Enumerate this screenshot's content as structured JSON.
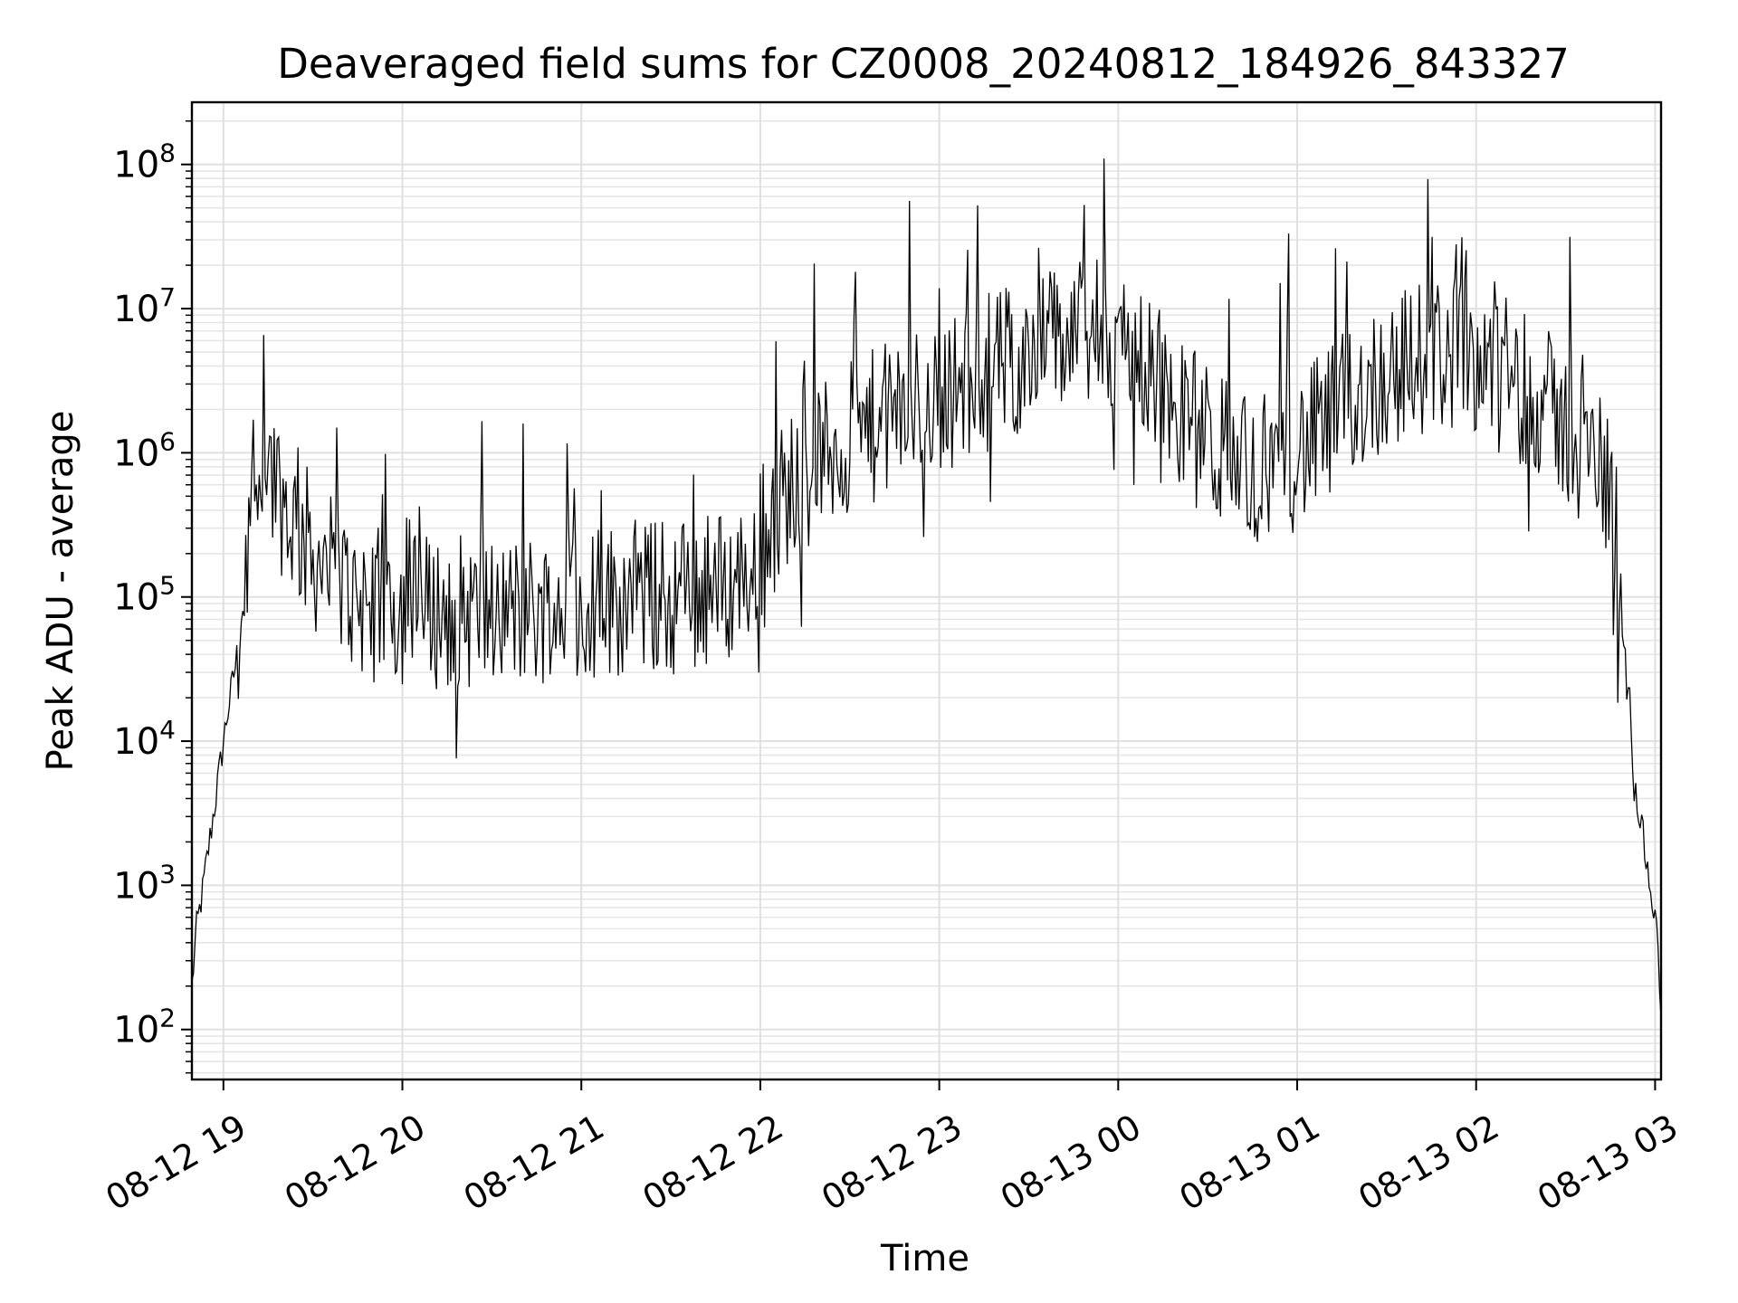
{
  "chart_data": {
    "type": "line",
    "title": "Deaveraged field sums for CZ0008_20240812_184926_843327",
    "xlabel": "Time",
    "ylabel": "Peak ADU - average",
    "yscale": "log",
    "xlim": [
      "2024-08-12 18:49:26",
      "2024-08-13 03:02:00"
    ],
    "ylim": [
      45,
      270000000
    ],
    "grid": true,
    "x_ticks": [
      {
        "value": "2024-08-12 19:00",
        "label": "08-12 19"
      },
      {
        "value": "2024-08-12 20:00",
        "label": "08-12 20"
      },
      {
        "value": "2024-08-12 21:00",
        "label": "08-12 21"
      },
      {
        "value": "2024-08-12 22:00",
        "label": "08-12 22"
      },
      {
        "value": "2024-08-12 23:00",
        "label": "08-12 23"
      },
      {
        "value": "2024-08-13 00:00",
        "label": "08-13 00"
      },
      {
        "value": "2024-08-13 01:00",
        "label": "08-13 01"
      },
      {
        "value": "2024-08-13 02:00",
        "label": "08-13 02"
      },
      {
        "value": "2024-08-13 03:00",
        "label": "08-13 03"
      }
    ],
    "y_ticks": [
      {
        "value": 100,
        "base": "10",
        "exp": "2"
      },
      {
        "value": 1000,
        "base": "10",
        "exp": "3"
      },
      {
        "value": 10000,
        "base": "10",
        "exp": "4"
      },
      {
        "value": 100000,
        "base": "10",
        "exp": "5"
      },
      {
        "value": 1000000,
        "base": "10",
        "exp": "6"
      },
      {
        "value": 10000000,
        "base": "10",
        "exp": "7"
      },
      {
        "value": 100000000,
        "base": "10",
        "exp": "8"
      }
    ],
    "series": [
      {
        "color": "#000000",
        "x": [
          "2024-08-12 18:49:26",
          "2024-08-12 18:51:00",
          "2024-08-12 18:53:00",
          "2024-08-12 18:55:00",
          "2024-08-12 18:57:00",
          "2024-08-12 18:59:00",
          "2024-08-12 19:01:00",
          "2024-08-12 19:03:00",
          "2024-08-12 19:05:00",
          "2024-08-12 19:07:00",
          "2024-08-12 19:09:00",
          "2024-08-12 19:12:00",
          "2024-08-12 19:15:00",
          "2024-08-12 19:18:00",
          "2024-08-12 19:21:00",
          "2024-08-12 19:25:00",
          "2024-08-12 19:30:00",
          "2024-08-12 19:35:00",
          "2024-08-12 19:40:00",
          "2024-08-12 19:45:00",
          "2024-08-12 19:50:00",
          "2024-08-12 20:00:00",
          "2024-08-12 20:10:00",
          "2024-08-12 20:20:00",
          "2024-08-12 20:30:00",
          "2024-08-12 20:40:00",
          "2024-08-12 20:50:00",
          "2024-08-12 21:00:00",
          "2024-08-12 21:10:00",
          "2024-08-12 21:20:00",
          "2024-08-12 21:30:00",
          "2024-08-12 21:40:00",
          "2024-08-12 21:50:00",
          "2024-08-12 21:55:00",
          "2024-08-12 22:00:00",
          "2024-08-12 22:10:00",
          "2024-08-12 22:20:00",
          "2024-08-12 22:30:00",
          "2024-08-12 22:40:00",
          "2024-08-12 22:50:00",
          "2024-08-12 23:00:00",
          "2024-08-12 23:10:00",
          "2024-08-12 23:20:00",
          "2024-08-12 23:30:00",
          "2024-08-12 23:40:00",
          "2024-08-12 23:50:00",
          "2024-08-13 00:00:00",
          "2024-08-13 00:10:00",
          "2024-08-13 00:20:00",
          "2024-08-13 00:30:00",
          "2024-08-13 00:40:00",
          "2024-08-13 00:50:00",
          "2024-08-13 01:00:00",
          "2024-08-13 01:10:00",
          "2024-08-13 01:20:00",
          "2024-08-13 01:30:00",
          "2024-08-13 01:40:00",
          "2024-08-13 01:50:00",
          "2024-08-13 02:00:00",
          "2024-08-13 02:10:00",
          "2024-08-13 02:20:00",
          "2024-08-13 02:30:00",
          "2024-08-13 02:40:00",
          "2024-08-13 02:44:00",
          "2024-08-13 02:47:00",
          "2024-08-13 02:49:00",
          "2024-08-13 02:51:00",
          "2024-08-13 02:53:00",
          "2024-08-13 02:55:00",
          "2024-08-13 02:57:00",
          "2024-08-13 02:59:00",
          "2024-08-13 03:01:00",
          "2024-08-13 03:02:00"
        ],
        "y": [
          200,
          500,
          900,
          1800,
          3500,
          7000,
          14000,
          25000,
          45000,
          120000,
          400000,
          800000,
          900000,
          600000,
          400000,
          300000,
          200000,
          150000,
          120000,
          100000,
          90000,
          85000,
          80000,
          80000,
          75000,
          80000,
          85000,
          90000,
          95000,
          100000,
          100000,
          110000,
          120000,
          150000,
          250000,
          600000,
          900000,
          1200000,
          1600000,
          2000000,
          2500000,
          3000000,
          4000000,
          5000000,
          6000000,
          6500000,
          6000000,
          4000000,
          2000000,
          1200000,
          900000,
          800000,
          1000000,
          1500000,
          2500000,
          3500000,
          4500000,
          5000000,
          5000000,
          4000000,
          2500000,
          1500000,
          900000,
          700000,
          400000,
          150000,
          30000,
          5000,
          3000,
          1500,
          800,
          400,
          120
        ]
      }
    ]
  }
}
